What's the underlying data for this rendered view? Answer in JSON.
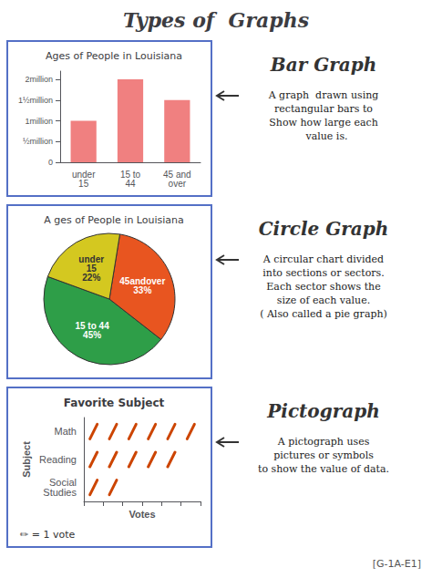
{
  "title": "Types of  Graphs",
  "annotations": [
    "[G-1A-E1]"
  ],
  "chart_data": [
    {
      "type": "bar",
      "title": "Ages of People in Louisiana",
      "categories": [
        "under\n15",
        "15 to\n44",
        "45 and\nover"
      ],
      "values": [
        1.0,
        2.0,
        1.5
      ],
      "color": "#f08080",
      "ylim": [
        0,
        2.2
      ],
      "yticks": [
        0,
        {
          "value": 0.5,
          "label": "½million"
        },
        {
          "value": 1.0,
          "label": "1million"
        },
        {
          "value": 1.5,
          "label": "1½million"
        },
        {
          "value": 2.0,
          "label": "2million"
        }
      ],
      "annotations": [
        "Bar Graph",
        "A graph  drawn using\nrectangular bars to\nShow how large each\n  value is."
      ]
    },
    {
      "type": "pie",
      "title": "A ges of People in Louisiana",
      "categories": [
        "15 to 44",
        "45andover",
        "under\n15"
      ],
      "values": [
        45,
        33,
        22
      ],
      "value_labels": [
        "45%",
        "33%",
        "22%"
      ],
      "data_labels": true,
      "colors": [
        "#2e9e48",
        "#e85520",
        "#d4c820"
      ],
      "annotations": [
        "Circle Graph",
        "A circular chart divided\ninto sections or sectors.\nEach sector shows the\nsize of each value.\n( Also called a pie graph)"
      ]
    },
    {
      "type": "pictograph",
      "title": "Favorite Subject",
      "categories": [
        "Math",
        "Reading",
        "Social\nStudies"
      ],
      "values": [
        6,
        5,
        2
      ],
      "color": "#cc4400",
      "xlabel": "Votes",
      "ylabel": "Subject",
      "xlim": [
        0,
        6
      ],
      "xticks": [
        0,
        1,
        2,
        3,
        4,
        5,
        6
      ],
      "tick_labels": "y",
      "annotations": [
        "Pictograph",
        "A pictograph uses\npictures or symbols\nto show the value of data.",
        "✏ = 1 vote"
      ]
    }
  ]
}
